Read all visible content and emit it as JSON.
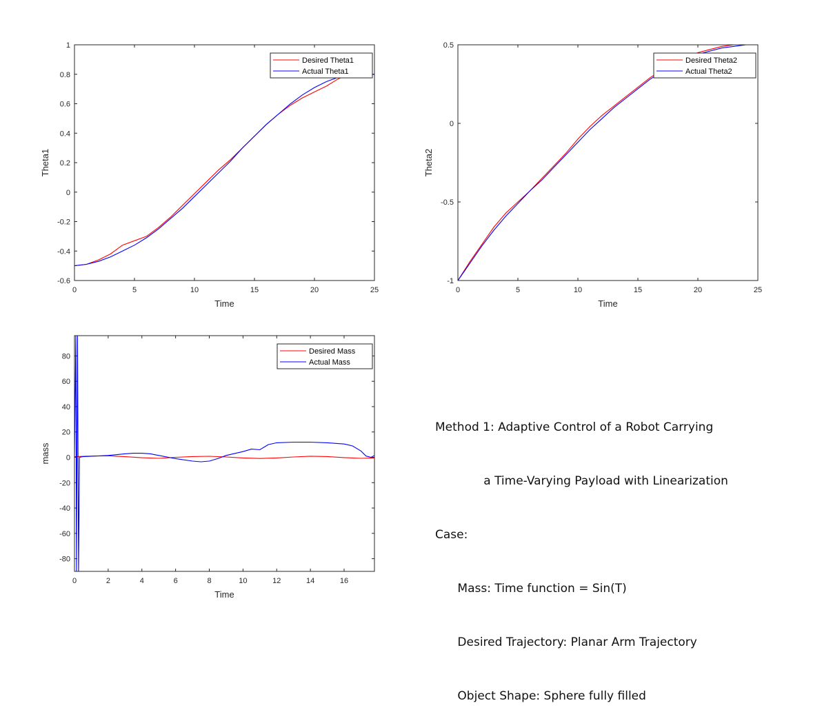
{
  "chart_data": [
    {
      "type": "line",
      "xlabel": "Time",
      "ylabel": "Theta1",
      "xlim": [
        0,
        25
      ],
      "ylim": [
        -0.6,
        1
      ],
      "xticks": [
        "0",
        "5",
        "10",
        "15",
        "20",
        "25"
      ],
      "yticks": [
        "-0.6",
        "-0.4",
        "-0.2",
        "0",
        "0.2",
        "0.4",
        "0.6",
        "0.8",
        "1"
      ],
      "legend_position": "top-right",
      "series": [
        {
          "name": "Desired Theta1",
          "color": "#ff0000",
          "x": [
            0,
            1,
            2,
            3,
            4,
            5,
            6,
            7,
            8,
            9,
            10,
            11,
            12,
            13,
            14,
            15,
            16,
            17,
            18,
            19,
            20,
            21,
            22,
            23,
            24,
            25
          ],
          "y": [
            -0.5,
            -0.49,
            -0.46,
            -0.42,
            -0.36,
            -0.33,
            -0.3,
            -0.24,
            -0.17,
            -0.09,
            -0.01,
            0.07,
            0.15,
            0.22,
            0.3,
            0.38,
            0.46,
            0.53,
            0.59,
            0.64,
            0.68,
            0.72,
            0.77,
            0.8,
            0.8,
            0.8
          ]
        },
        {
          "name": "Actual Theta1",
          "color": "#0000ff",
          "x": [
            0,
            1,
            2,
            3,
            4,
            5,
            6,
            7,
            8,
            9,
            10,
            11,
            12,
            13,
            14,
            15,
            16,
            17,
            18,
            19,
            20,
            21,
            22,
            23,
            24,
            25
          ],
          "y": [
            -0.5,
            -0.49,
            -0.47,
            -0.44,
            -0.4,
            -0.36,
            -0.31,
            -0.25,
            -0.18,
            -0.11,
            -0.03,
            0.05,
            0.13,
            0.21,
            0.3,
            0.38,
            0.46,
            0.53,
            0.6,
            0.66,
            0.71,
            0.75,
            0.78,
            0.8,
            0.8,
            0.8
          ]
        }
      ]
    },
    {
      "type": "line",
      "xlabel": "Time",
      "ylabel": "Theta2",
      "xlim": [
        0,
        25
      ],
      "ylim": [
        -1,
        0.5
      ],
      "xticks": [
        "0",
        "5",
        "10",
        "15",
        "20",
        "25"
      ],
      "yticks": [
        "-1",
        "-0.5",
        "0",
        "0.5"
      ],
      "legend_position": "top-right",
      "series": [
        {
          "name": "Desired Theta2",
          "color": "#ff0000",
          "x": [
            0,
            1,
            2,
            3,
            4,
            5,
            6,
            7,
            8,
            9,
            10,
            11,
            12,
            13,
            14,
            15,
            16,
            17,
            18,
            19,
            20,
            21,
            22,
            23,
            24,
            25
          ],
          "y": [
            -1,
            -0.88,
            -0.77,
            -0.66,
            -0.57,
            -0.5,
            -0.43,
            -0.35,
            -0.27,
            -0.19,
            -0.1,
            -0.02,
            0.05,
            0.11,
            0.17,
            0.23,
            0.29,
            0.34,
            0.38,
            0.42,
            0.45,
            0.47,
            0.49,
            0.5,
            0.5,
            0.5
          ]
        },
        {
          "name": "Actual Theta2",
          "color": "#0000ff",
          "x": [
            0,
            1,
            2,
            3,
            4,
            5,
            6,
            7,
            8,
            9,
            10,
            11,
            12,
            13,
            14,
            15,
            16,
            17,
            18,
            19,
            20,
            21,
            22,
            23,
            24,
            25
          ],
          "y": [
            -1,
            -0.89,
            -0.78,
            -0.68,
            -0.59,
            -0.51,
            -0.43,
            -0.36,
            -0.28,
            -0.2,
            -0.12,
            -0.04,
            0.03,
            0.1,
            0.16,
            0.22,
            0.28,
            0.33,
            0.37,
            0.41,
            0.44,
            0.46,
            0.48,
            0.49,
            0.5,
            0.5
          ]
        }
      ]
    },
    {
      "type": "line",
      "xlabel": "Time",
      "ylabel": "mass",
      "xlim": [
        0,
        17.8
      ],
      "ylim": [
        -90,
        96
      ],
      "xticks": [
        "0",
        "2",
        "4",
        "6",
        "8",
        "10",
        "12",
        "14",
        "16"
      ],
      "yticks": [
        "-80",
        "-60",
        "-40",
        "-20",
        "0",
        "20",
        "40",
        "60",
        "80"
      ],
      "legend_position": "top-right",
      "series": [
        {
          "name": "Desired Mass",
          "color": "#ff0000",
          "x": [
            0,
            1,
            2,
            3,
            4,
            5,
            6,
            7,
            8,
            9,
            10,
            11,
            12,
            13,
            14,
            15,
            16,
            17,
            17.8
          ],
          "y": [
            0.5,
            1,
            1.2,
            0.5,
            -0.3,
            -0.8,
            0,
            0.6,
            0.8,
            0.3,
            -0.5,
            -0.9,
            -0.5,
            0.3,
            0.9,
            0.6,
            -0.2,
            -0.8,
            -0.5
          ]
        },
        {
          "name": "Actual Mass",
          "color": "#0000ff",
          "x": [
            0,
            0.08,
            0.12,
            0.18,
            0.24,
            0.3,
            0.5,
            1,
            2,
            3,
            3.5,
            4,
            4.5,
            5,
            6,
            7,
            7.5,
            8,
            8.5,
            9,
            10,
            10.5,
            11,
            11.5,
            12,
            13,
            14,
            15,
            16,
            16.5,
            17,
            17.3,
            17.6,
            17.8
          ],
          "y": [
            0,
            96,
            -90,
            96,
            -90,
            0,
            0.5,
            0.8,
            1.5,
            2.8,
            3.2,
            3.2,
            2.8,
            1.5,
            -1,
            -3,
            -3.5,
            -3,
            -1,
            1.5,
            4.5,
            6.5,
            6,
            10,
            11.5,
            12,
            12,
            11.5,
            10.5,
            9,
            5,
            1,
            0,
            1.5
          ]
        }
      ]
    }
  ],
  "note": {
    "lines": [
      "Method 1: Adaptive Control of a Robot Carrying",
      "             a Time-Varying Payload with Linearization",
      "Case:",
      "      Mass: Time function = Sin(T)",
      "      Desired Trajectory: Planar Arm Trajectory",
      "      Object Shape: Sphere fully filled"
    ]
  }
}
